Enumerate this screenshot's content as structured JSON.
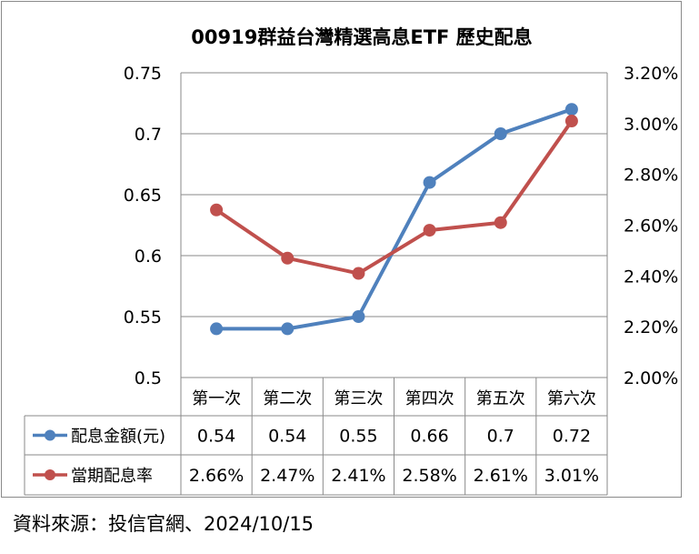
{
  "chart_data": {
    "type": "line",
    "title": "00919群益台灣精選高息ETF 歷史配息",
    "categories": [
      "第一次",
      "第二次",
      "第三次",
      "第四次",
      "第五次",
      "第六次"
    ],
    "y_left": {
      "range": [
        0.5,
        0.75
      ],
      "ticks": [
        0.75,
        0.7,
        0.65,
        0.6,
        0.55,
        0.5
      ],
      "tick_labels": [
        "0.75",
        "0.7",
        "0.65",
        "0.6",
        "0.55",
        "0.5"
      ]
    },
    "y_right": {
      "range": [
        2.0,
        3.2
      ],
      "ticks": [
        3.2,
        3.0,
        2.8,
        2.6,
        2.4,
        2.2,
        2.0
      ],
      "tick_labels": [
        "3.20%",
        "3.00%",
        "2.80%",
        "2.60%",
        "2.40%",
        "2.20%",
        "2.00%"
      ]
    },
    "series": [
      {
        "name": "配息金額(元)",
        "axis": "left",
        "color": "#4F81BD",
        "values": [
          0.54,
          0.54,
          0.55,
          0.66,
          0.7,
          0.72
        ],
        "value_labels": [
          "0.54",
          "0.54",
          "0.55",
          "0.66",
          "0.7",
          "0.72"
        ]
      },
      {
        "name": "當期配息率",
        "axis": "right",
        "color": "#C0504D",
        "values": [
          2.66,
          2.47,
          2.41,
          2.58,
          2.61,
          3.01
        ],
        "value_labels": [
          "2.66%",
          "2.47%",
          "2.41%",
          "2.58%",
          "2.61%",
          "3.01%"
        ]
      }
    ],
    "grid": true,
    "legend": "data-table-bottom"
  },
  "source": "資料來源：投信官網、2024/10/15"
}
